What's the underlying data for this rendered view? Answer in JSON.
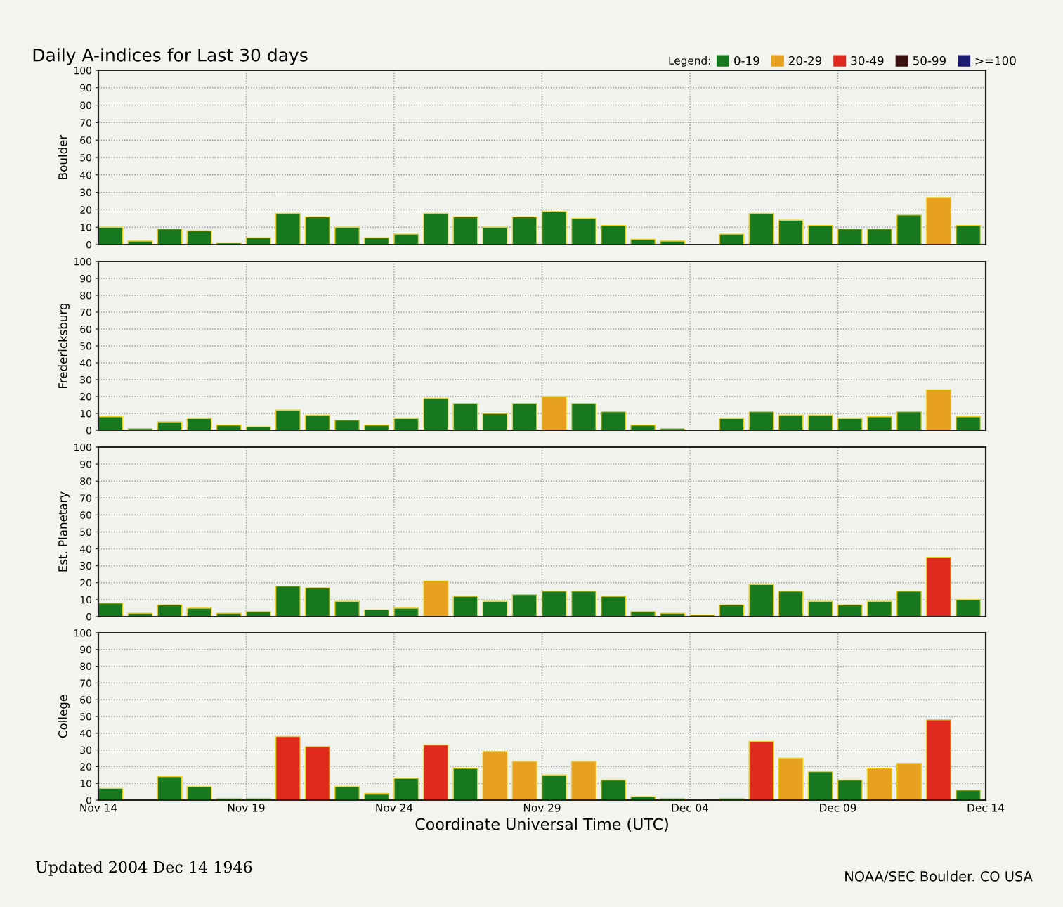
{
  "chart_data": [
    {
      "type": "bar",
      "title": "Daily A-indices for Last 30 days",
      "legend_title": "Legend:",
      "ylabel": "Boulder",
      "legend": "top right",
      "grid": true,
      "tick_labels": "y",
      "x": [
        "2004-11-14",
        "2004-11-15",
        "2004-11-16",
        "2004-11-17",
        "2004-11-18",
        "2004-11-19",
        "2004-11-20",
        "2004-11-21",
        "2004-11-22",
        "2004-11-23",
        "2004-11-24",
        "2004-11-25",
        "2004-11-26",
        "2004-11-27",
        "2004-11-28",
        "2004-11-29",
        "2004-11-30",
        "2004-12-01",
        "2004-12-02",
        "2004-12-03",
        "2004-12-04",
        "2004-12-05",
        "2004-12-06",
        "2004-12-07",
        "2004-12-08",
        "2004-12-09",
        "2004-12-10",
        "2004-12-11",
        "2004-12-12",
        "2004-12-13"
      ],
      "xlim": [
        "2004-11-14",
        "2004-12-14"
      ],
      "ylim": [
        0,
        100
      ],
      "yticks": [
        0,
        10,
        20,
        30,
        40,
        50,
        60,
        70,
        80,
        90,
        100
      ],
      "series": [
        {
          "name": "0-19",
          "color": "#17781f",
          "values": [
            10,
            2,
            9,
            8,
            1,
            4,
            18,
            16,
            10,
            4,
            6,
            18,
            16,
            10,
            16,
            19,
            15,
            11,
            3,
            2,
            0,
            6,
            18,
            14,
            11,
            9,
            9,
            17,
            null,
            11
          ]
        },
        {
          "name": "20-29",
          "color": "#e8a020",
          "values": [
            null,
            null,
            null,
            null,
            null,
            null,
            null,
            null,
            null,
            null,
            null,
            null,
            null,
            null,
            null,
            null,
            null,
            null,
            null,
            null,
            null,
            null,
            null,
            null,
            null,
            null,
            null,
            null,
            27,
            null
          ]
        },
        {
          "name": "30-49",
          "color": "#e02a20",
          "values": [
            null,
            null,
            null,
            null,
            null,
            null,
            null,
            null,
            null,
            null,
            null,
            null,
            null,
            null,
            null,
            null,
            null,
            null,
            null,
            null,
            null,
            null,
            null,
            null,
            null,
            null,
            null,
            null,
            null,
            null
          ]
        },
        {
          "name": "50-99",
          "color": "#3a1010",
          "values": [
            null,
            null,
            null,
            null,
            null,
            null,
            null,
            null,
            null,
            null,
            null,
            null,
            null,
            null,
            null,
            null,
            null,
            null,
            null,
            null,
            null,
            null,
            null,
            null,
            null,
            null,
            null,
            null,
            null,
            null
          ]
        },
        {
          "name": ">=100",
          "color": "#1c1c70",
          "values": [
            null,
            null,
            null,
            null,
            null,
            null,
            null,
            null,
            null,
            null,
            null,
            null,
            null,
            null,
            null,
            null,
            null,
            null,
            null,
            null,
            null,
            null,
            null,
            null,
            null,
            null,
            null,
            null,
            null,
            null
          ]
        }
      ]
    },
    {
      "type": "bar",
      "ylabel": "Fredericksburg",
      "grid": true,
      "tick_labels": "y",
      "x": [
        "2004-11-14",
        "2004-11-15",
        "2004-11-16",
        "2004-11-17",
        "2004-11-18",
        "2004-11-19",
        "2004-11-20",
        "2004-11-21",
        "2004-11-22",
        "2004-11-23",
        "2004-11-24",
        "2004-11-25",
        "2004-11-26",
        "2004-11-27",
        "2004-11-28",
        "2004-11-29",
        "2004-11-30",
        "2004-12-01",
        "2004-12-02",
        "2004-12-03",
        "2004-12-04",
        "2004-12-05",
        "2004-12-06",
        "2004-12-07",
        "2004-12-08",
        "2004-12-09",
        "2004-12-10",
        "2004-12-11",
        "2004-12-12",
        "2004-12-13"
      ],
      "xlim": [
        "2004-11-14",
        "2004-12-14"
      ],
      "ylim": [
        0,
        100
      ],
      "yticks": [
        0,
        10,
        20,
        30,
        40,
        50,
        60,
        70,
        80,
        90,
        100
      ],
      "series": [
        {
          "color": "#17781f",
          "values": [
            8,
            1,
            5,
            7,
            3,
            2,
            12,
            9,
            6,
            3,
            7,
            19,
            16,
            10,
            16,
            null,
            16,
            11,
            3,
            1,
            0,
            7,
            11,
            9,
            9,
            7,
            8,
            11,
            null,
            8
          ]
        },
        {
          "color": "#e8a020",
          "values": [
            null,
            null,
            null,
            null,
            null,
            null,
            null,
            null,
            null,
            null,
            null,
            null,
            null,
            null,
            null,
            20,
            null,
            null,
            null,
            null,
            null,
            null,
            null,
            null,
            null,
            null,
            null,
            null,
            24,
            null
          ]
        }
      ]
    },
    {
      "type": "bar",
      "ylabel": "Est. Planetary",
      "grid": true,
      "tick_labels": "y",
      "x": [
        "2004-11-14",
        "2004-11-15",
        "2004-11-16",
        "2004-11-17",
        "2004-11-18",
        "2004-11-19",
        "2004-11-20",
        "2004-11-21",
        "2004-11-22",
        "2004-11-23",
        "2004-11-24",
        "2004-11-25",
        "2004-11-26",
        "2004-11-27",
        "2004-11-28",
        "2004-11-29",
        "2004-11-30",
        "2004-12-01",
        "2004-12-02",
        "2004-12-03",
        "2004-12-04",
        "2004-12-05",
        "2004-12-06",
        "2004-12-07",
        "2004-12-08",
        "2004-12-09",
        "2004-12-10",
        "2004-12-11",
        "2004-12-12",
        "2004-12-13"
      ],
      "xlim": [
        "2004-11-14",
        "2004-12-14"
      ],
      "ylim": [
        0,
        100
      ],
      "yticks": [
        0,
        10,
        20,
        30,
        40,
        50,
        60,
        70,
        80,
        90,
        100
      ],
      "series": [
        {
          "color": "#17781f",
          "values": [
            8,
            2,
            7,
            5,
            2,
            3,
            18,
            17,
            9,
            4,
            5,
            null,
            12,
            9,
            13,
            15,
            15,
            12,
            3,
            2,
            1,
            7,
            19,
            15,
            9,
            7,
            9,
            15,
            null,
            10
          ]
        },
        {
          "color": "#e8a020",
          "values": [
            null,
            null,
            null,
            null,
            null,
            null,
            null,
            null,
            null,
            null,
            null,
            21,
            null,
            null,
            null,
            null,
            null,
            null,
            null,
            null,
            null,
            null,
            null,
            null,
            null,
            null,
            null,
            null,
            null,
            null
          ]
        },
        {
          "color": "#e02a20",
          "values": [
            null,
            null,
            null,
            null,
            null,
            null,
            null,
            null,
            null,
            null,
            null,
            null,
            null,
            null,
            null,
            null,
            null,
            null,
            null,
            null,
            null,
            null,
            null,
            null,
            null,
            null,
            null,
            null,
            35,
            null
          ]
        }
      ]
    },
    {
      "type": "bar",
      "ylabel": "College",
      "xlabel": "Coordinate Universal Time (UTC)",
      "grid": true,
      "annotations": [
        "Updated 2004 Dec 14 1946",
        "NOAA/SEC Boulder. CO USA"
      ],
      "x": [
        "2004-11-14",
        "2004-11-15",
        "2004-11-16",
        "2004-11-17",
        "2004-11-18",
        "2004-11-19",
        "2004-11-20",
        "2004-11-21",
        "2004-11-22",
        "2004-11-23",
        "2004-11-24",
        "2004-11-25",
        "2004-11-26",
        "2004-11-27",
        "2004-11-28",
        "2004-11-29",
        "2004-11-30",
        "2004-12-01",
        "2004-12-02",
        "2004-12-03",
        "2004-12-04",
        "2004-12-05",
        "2004-12-06",
        "2004-12-07",
        "2004-12-08",
        "2004-12-09",
        "2004-12-10",
        "2004-12-11",
        "2004-12-12",
        "2004-12-13"
      ],
      "xlim": [
        "2004-11-14",
        "2004-12-14"
      ],
      "ylim": [
        0,
        100
      ],
      "yticks": [
        0,
        10,
        20,
        30,
        40,
        50,
        60,
        70,
        80,
        90,
        100
      ],
      "xticks": [
        {
          "value": "2004-11-14",
          "label": "Nov 14"
        },
        {
          "value": "2004-11-19",
          "label": "Nov 19"
        },
        {
          "value": "2004-11-24",
          "label": "Nov 24"
        },
        {
          "value": "2004-11-29",
          "label": "Nov 29"
        },
        {
          "value": "2004-12-04",
          "label": "Dec 04"
        },
        {
          "value": "2004-12-09",
          "label": "Dec 09"
        },
        {
          "value": "2004-12-14",
          "label": "Dec 14"
        }
      ],
      "series": [
        {
          "color": "#17781f",
          "values": [
            7,
            0,
            14,
            8,
            1,
            1,
            null,
            null,
            8,
            4,
            13,
            null,
            19,
            null,
            null,
            15,
            null,
            12,
            2,
            1,
            0,
            1,
            null,
            null,
            17,
            12,
            null,
            null,
            null,
            6
          ]
        },
        {
          "color": "#e8a020",
          "values": [
            null,
            null,
            null,
            null,
            null,
            null,
            null,
            null,
            null,
            null,
            null,
            null,
            null,
            29,
            23,
            null,
            23,
            null,
            null,
            null,
            null,
            null,
            null,
            25,
            null,
            null,
            19,
            22,
            null,
            null
          ]
        },
        {
          "color": "#e02a20",
          "values": [
            null,
            null,
            null,
            null,
            null,
            null,
            38,
            32,
            null,
            null,
            null,
            33,
            null,
            null,
            null,
            null,
            null,
            null,
            null,
            null,
            null,
            null,
            35,
            null,
            null,
            null,
            null,
            null,
            48,
            null
          ]
        }
      ]
    }
  ]
}
